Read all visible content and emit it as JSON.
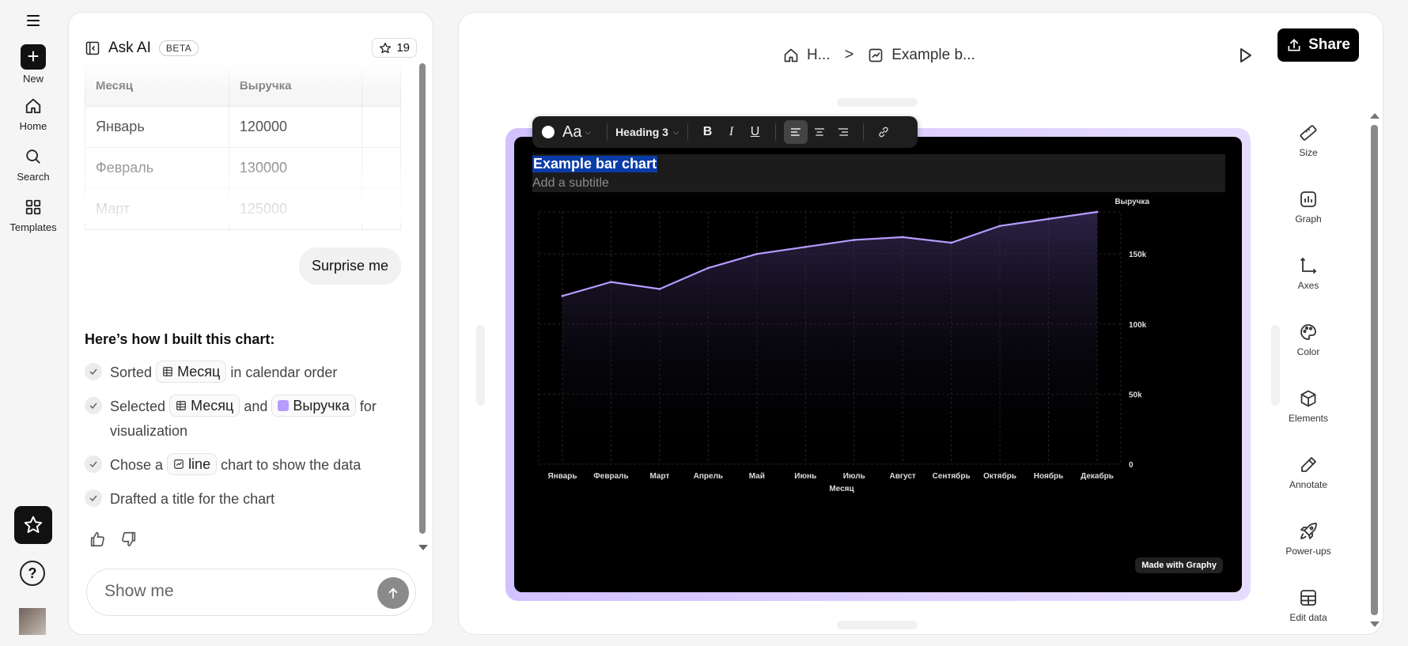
{
  "rail": {
    "new_label": "New",
    "home_label": "Home",
    "search_label": "Search",
    "templates_label": "Templates",
    "help_label": "?"
  },
  "chat": {
    "title": "Ask AI",
    "badge": "BETA",
    "star_count": "19",
    "table": {
      "headers": [
        "Месяц",
        "Выручка"
      ],
      "rows": [
        [
          "Январь",
          "120000"
        ],
        [
          "Февраль",
          "130000"
        ],
        [
          "Март",
          "125000"
        ]
      ]
    },
    "user_message": "Surprise me",
    "built_title": "Here’s how I built this chart:",
    "steps": {
      "s1": {
        "pre": "Sorted",
        "chip": "Месяц",
        "post": "in calendar order"
      },
      "s2": {
        "pre": "Selected",
        "chip1": "Месяц",
        "mid": "and",
        "chip2": "Выручка",
        "post": "for visualization"
      },
      "s3": {
        "pre": "Chose a",
        "chip": "line",
        "post": "chart to show the data"
      },
      "s4": {
        "text": "Drafted a title for the chart"
      }
    },
    "input_placeholder": "Show me"
  },
  "editor": {
    "breadcrumb_home": "H...",
    "breadcrumb_sep": ">",
    "breadcrumb_page": "Example b...",
    "share_label": "Share",
    "format_toolbar": {
      "font_label": "Aa",
      "heading_label": "Heading 3",
      "bold": "B",
      "italic": "I",
      "underline": "U"
    },
    "made_with": "Made with Graphy",
    "tools": [
      "Size",
      "Graph",
      "Axes",
      "Color",
      "Elements",
      "Annotate",
      "Power-ups",
      "Edit data"
    ]
  },
  "chart_data": {
    "type": "area",
    "title": "Example bar chart",
    "subtitle": "Add a subtitle",
    "xlabel": "Месяц",
    "ylabel": "Выручка",
    "categories": [
      "Январь",
      "Февраль",
      "Март",
      "Апрель",
      "Май",
      "Июнь",
      "Июль",
      "Август",
      "Сентябрь",
      "Октябрь",
      "Ноябрь",
      "Декабрь"
    ],
    "series": [
      {
        "name": "Выручка",
        "values": [
          120000,
          130000,
          125000,
          140000,
          150000,
          155000,
          160000,
          162000,
          158000,
          170000,
          175000,
          180000
        ]
      }
    ],
    "y_ticks": [
      0,
      50000,
      100000,
      150000
    ],
    "y_tick_labels": [
      "0",
      "50k",
      "100k",
      "150k"
    ],
    "ylim": [
      0,
      180000
    ],
    "y_axis_position": "right",
    "grid": true,
    "line_color": "#b59cff",
    "background": "#000000"
  }
}
